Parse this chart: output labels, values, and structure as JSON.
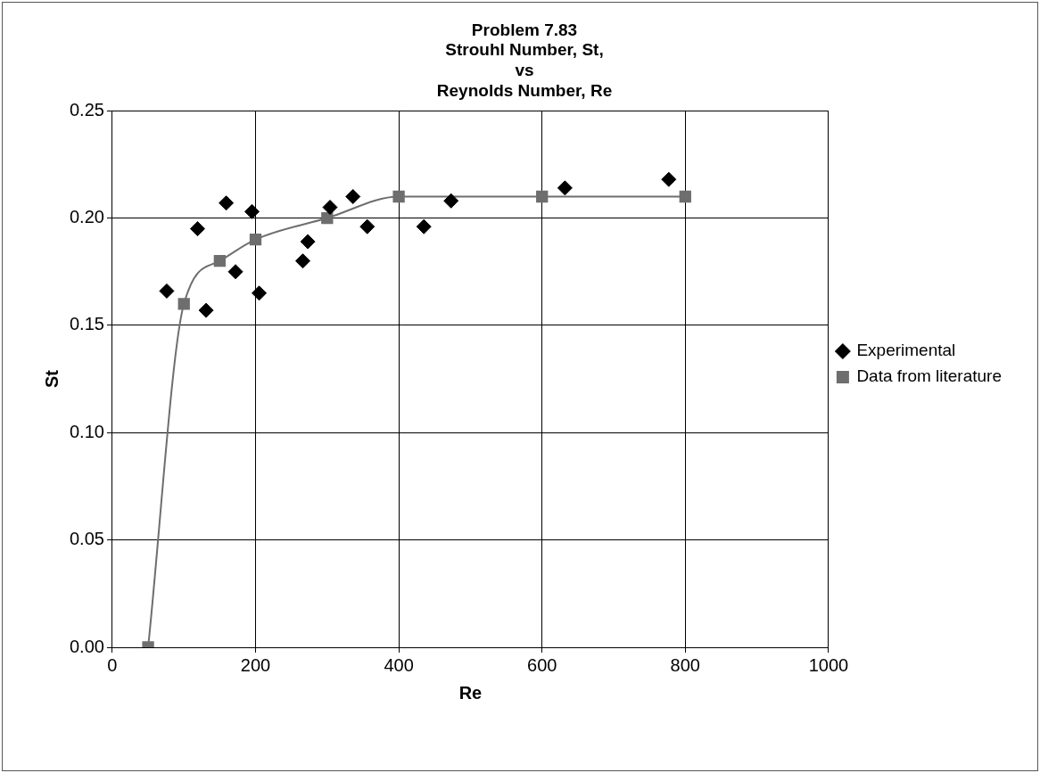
{
  "chart_data": {
    "type": "scatter",
    "title": [
      "Problem 7.83",
      "Strouhl Number, St,",
      "vs",
      "Reynolds Number, Re"
    ],
    "xlabel": "Re",
    "ylabel": "St",
    "xlim": [
      0,
      1000
    ],
    "xticks": [
      0,
      200,
      400,
      600,
      800,
      1000
    ],
    "ylim": [
      0,
      0.25
    ],
    "yticks": [
      {
        "value": 0,
        "label": "0.00"
      },
      {
        "value": 0.05,
        "label": "0.05"
      },
      {
        "value": 0.1,
        "label": "0.10"
      },
      {
        "value": 0.15,
        "label": "0.15"
      },
      {
        "value": 0.2,
        "label": "0.20"
      },
      {
        "value": 0.25,
        "label": "0.25"
      }
    ],
    "grid": true,
    "legend": "right",
    "series": [
      {
        "name": "Experimental",
        "type": "scatter",
        "marker": "diamond",
        "color": "#000000",
        "x": [
          76,
          119,
          131,
          159,
          172,
          195,
          205,
          266,
          273,
          304,
          336,
          356,
          435,
          473,
          632,
          777
        ],
        "values": [
          0.166,
          0.195,
          0.157,
          0.207,
          0.175,
          0.203,
          0.165,
          0.18,
          0.189,
          0.205,
          0.21,
          0.196,
          0.196,
          0.208,
          0.214,
          0.218
        ]
      },
      {
        "name": "Data from literature",
        "type": "line",
        "marker": "square",
        "color": "#6e6e6e",
        "x": [
          50,
          100,
          150,
          200,
          300,
          400,
          600,
          800
        ],
        "values": [
          0,
          0.16,
          0.18,
          0.19,
          0.2,
          0.21,
          0.21,
          0.21
        ]
      }
    ]
  }
}
